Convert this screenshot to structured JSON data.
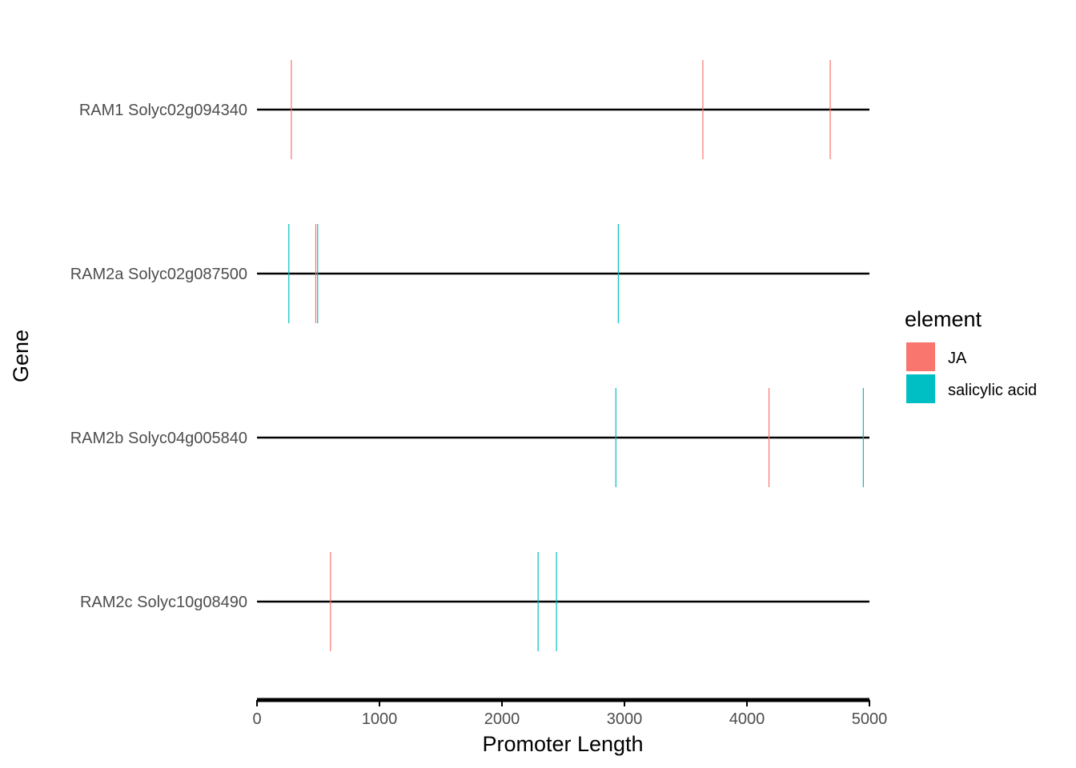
{
  "chart_data": {
    "type": "scatter",
    "xlabel": "Promoter Length",
    "ylabel": "Gene",
    "xlim": [
      0,
      5000
    ],
    "x_ticks": [
      0,
      1000,
      2000,
      3000,
      4000,
      5000
    ],
    "x_tick_labels": [
      "0",
      "1000",
      "2000",
      "3000",
      "4000",
      "5000"
    ],
    "genes": [
      {
        "label": "RAM1 Solyc02g094340",
        "promoter_length": 5000
      },
      {
        "label": "RAM2a Solyc02g087500",
        "promoter_length": 5000
      },
      {
        "label": "RAM2b Solyc04g005840",
        "promoter_length": 5000
      },
      {
        "label": "RAM2c Solyc10g08490",
        "promoter_length": 5000
      }
    ],
    "legend": {
      "title": "element",
      "placement": "right",
      "items": [
        {
          "label": "JA",
          "color": "#F8766D"
        },
        {
          "label": "salicylic acid",
          "color": "#00BFC4"
        }
      ]
    },
    "series": [
      {
        "name": "JA",
        "color": "#F8766D",
        "points": [
          {
            "gene": "RAM1 Solyc02g094340",
            "x": 280
          },
          {
            "gene": "RAM1 Solyc02g094340",
            "x": 3640
          },
          {
            "gene": "RAM1 Solyc02g094340",
            "x": 4680
          },
          {
            "gene": "RAM2a Solyc02g087500",
            "x": 480
          },
          {
            "gene": "RAM2b Solyc04g005840",
            "x": 4180
          },
          {
            "gene": "RAM2c Solyc10g08490",
            "x": 600
          }
        ]
      },
      {
        "name": "salicylic acid",
        "color": "#00BFC4",
        "points": [
          {
            "gene": "RAM2a Solyc02g087500",
            "x": 260
          },
          {
            "gene": "RAM2a Solyc02g087500",
            "x": 495
          },
          {
            "gene": "RAM2a Solyc02g087500",
            "x": 2950
          },
          {
            "gene": "RAM2b Solyc04g005840",
            "x": 2930
          },
          {
            "gene": "RAM2b Solyc04g005840",
            "x": 4950
          },
          {
            "gene": "RAM2c Solyc10g08490",
            "x": 2295
          },
          {
            "gene": "RAM2c Solyc10g08490",
            "x": 2445
          }
        ]
      }
    ],
    "grid": false
  }
}
